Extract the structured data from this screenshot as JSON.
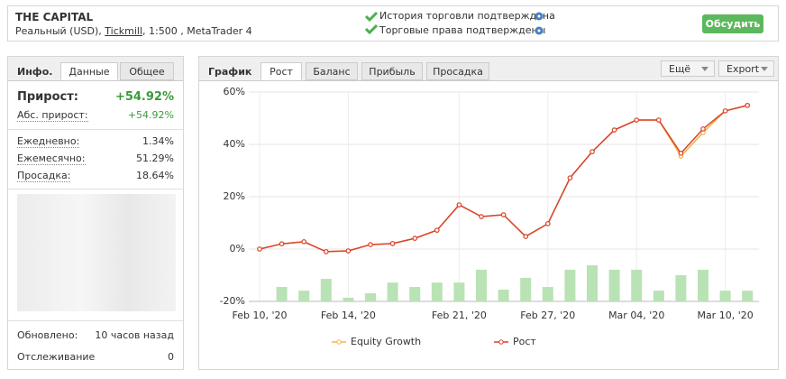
{
  "header": {
    "title": "THE CAPITAL",
    "account_type": "Реальный (USD),",
    "broker": "Tickmill",
    "details": ", 1:500 , MetaTrader 4",
    "checks": [
      "История торговли подтверждена",
      "Торговые права подтверждены"
    ],
    "button": "Обсудить"
  },
  "sidebar": {
    "title": "Инфо.",
    "tabs": [
      "Данные",
      "Общее"
    ],
    "gain": {
      "label": "Прирост:",
      "value": "+54.92%"
    },
    "abs_gain": {
      "label": "Абс. прирост:",
      "value": "+54.92%"
    },
    "stats": [
      {
        "label": "Ежедневно:",
        "value": "1.34%"
      },
      {
        "label": "Ежемесячно:",
        "value": "51.29%"
      },
      {
        "label": "Просадка:",
        "value": "18.64%"
      }
    ],
    "footer": [
      {
        "label": "Обновлено:",
        "value": "10 часов назад"
      },
      {
        "label": "Отслеживание",
        "value": "0"
      }
    ]
  },
  "chart_panel": {
    "title": "График",
    "tabs": [
      "Рост",
      "Баланс",
      "Прибыль",
      "Просадка"
    ],
    "menus": [
      "Ещё",
      "Export"
    ]
  },
  "chart_data": {
    "type": "line",
    "categories": [
      "Feb 10, '20",
      null,
      null,
      null,
      "Feb 14, '20",
      null,
      null,
      null,
      null,
      "Feb 21, '20",
      null,
      null,
      null,
      "Feb 27, '20",
      null,
      null,
      null,
      "Mar 04, '20",
      null,
      null,
      null,
      "Mar 10, '20",
      null
    ],
    "series": [
      {
        "name": "Equity Growth",
        "color": "#f4b63f",
        "values": [
          0,
          2,
          2.8,
          -1,
          -0.7,
          1.7,
          2.1,
          4.1,
          7.2,
          16.9,
          12.4,
          13.1,
          4.8,
          9.7,
          27.2,
          37.2,
          45.5,
          49.3,
          49.3,
          35.5,
          44.5,
          52.8,
          54.9
        ]
      },
      {
        "name": "Рост",
        "color": "#d8432e",
        "values": [
          0,
          2,
          2.8,
          -1,
          -0.7,
          1.7,
          2.1,
          4.1,
          7.2,
          16.9,
          12.4,
          13.1,
          4.8,
          9.7,
          27.2,
          37.2,
          45.5,
          49.3,
          49.3,
          36.6,
          45.9,
          52.8,
          54.9
        ]
      },
      {
        "type": "bar",
        "color": "#b9e2b5",
        "values": [
          null,
          -14.5,
          -15.9,
          -11.4,
          -18.6,
          -16.9,
          -12.8,
          -14.5,
          -12.8,
          -12.8,
          -7.9,
          -15.5,
          -11,
          -14.5,
          -7.9,
          -6.2,
          -7.9,
          -7.9,
          -15.9,
          -10,
          -7.9,
          -15.9,
          -15.9
        ]
      }
    ],
    "ylim": [
      -20,
      60
    ],
    "yticks": [
      {
        "value": 60,
        "label": "60%"
      },
      {
        "value": 40,
        "label": "40%"
      },
      {
        "value": 20,
        "label": "20%"
      },
      {
        "value": 0,
        "label": "0%"
      },
      {
        "value": -20,
        "label": "-20%"
      }
    ],
    "grid": true
  }
}
